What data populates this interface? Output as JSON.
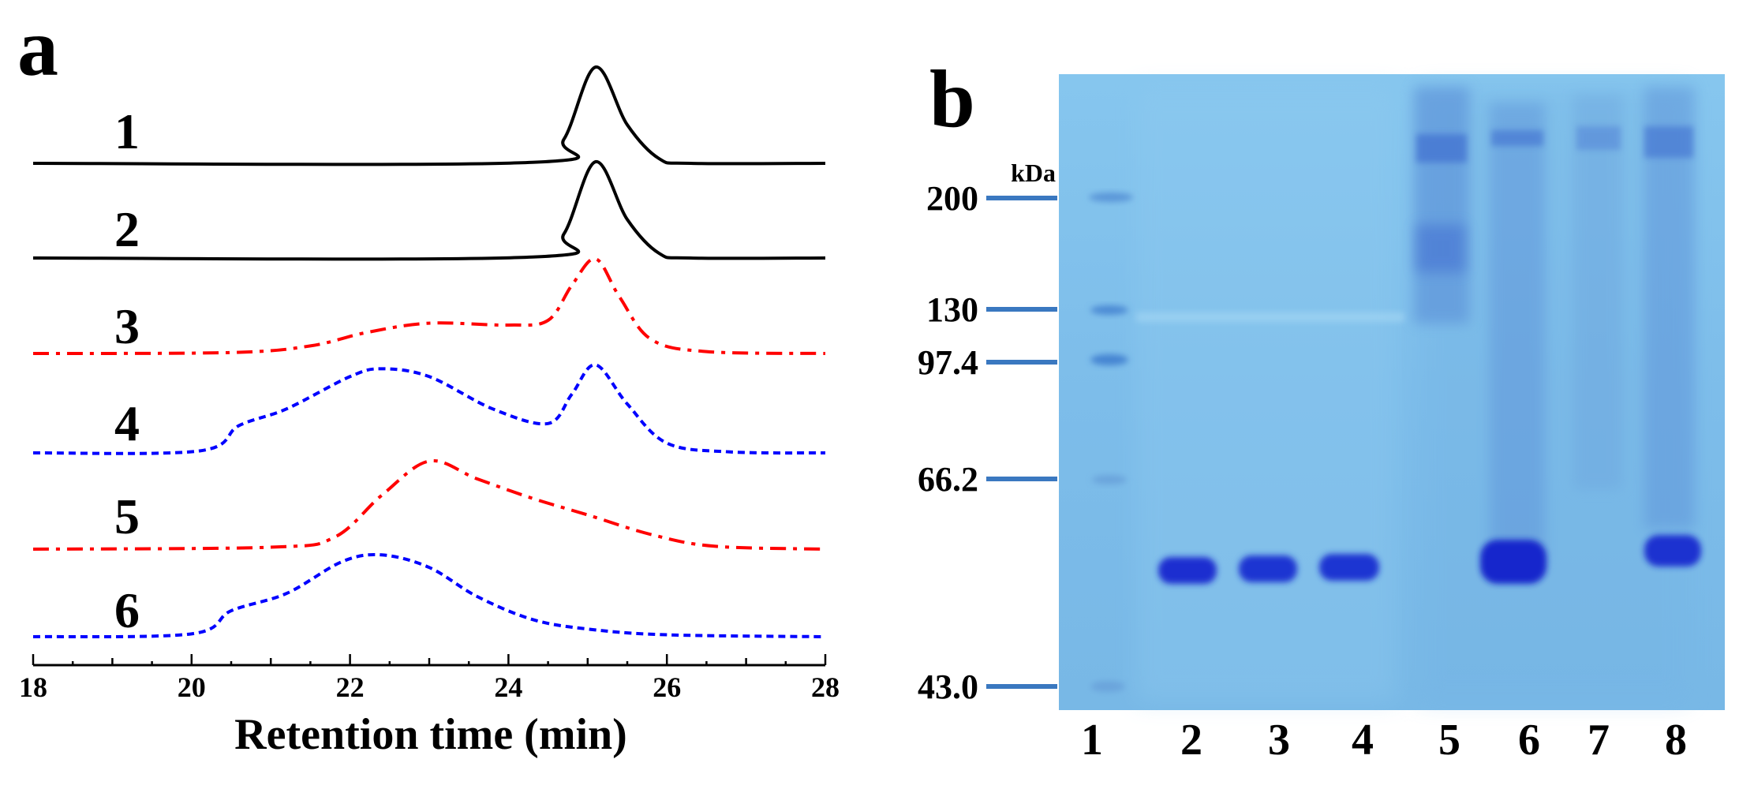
{
  "panel_a_letter": "a",
  "panel_b_letter": "b",
  "chart_data": [
    {
      "type": "line",
      "xlabel": "Retention time (min)",
      "ylabel": "",
      "xlim": [
        18,
        28
      ],
      "xticks": [
        18,
        20,
        22,
        24,
        26,
        28
      ],
      "grid": false,
      "traces": [
        {
          "label": "1",
          "color": "#000000",
          "style": "solid",
          "x": [
            18,
            24.3,
            24.7,
            25.1,
            25.5,
            25.9,
            26.3,
            28
          ],
          "y": [
            0,
            0.01,
            0.25,
            1.0,
            0.4,
            0.05,
            0,
            0
          ]
        },
        {
          "label": "2",
          "color": "#000000",
          "style": "solid",
          "x": [
            18,
            24.3,
            24.7,
            25.1,
            25.5,
            25.9,
            26.3,
            28
          ],
          "y": [
            0,
            0.01,
            0.25,
            1.0,
            0.4,
            0.05,
            0,
            0
          ]
        },
        {
          "label": "3",
          "color": "#ff0000",
          "style": "dashdot",
          "x": [
            18,
            20.5,
            21.5,
            22.2,
            23.0,
            24.0,
            24.5,
            24.8,
            25.1,
            25.4,
            25.8,
            26.5,
            28
          ],
          "y": [
            0,
            0.01,
            0.08,
            0.22,
            0.32,
            0.3,
            0.35,
            0.72,
            1.0,
            0.6,
            0.15,
            0.02,
            0
          ]
        },
        {
          "label": "4",
          "color": "#0000ff",
          "style": "dotted",
          "x": [
            18,
            20.1,
            20.6,
            21.2,
            22.0,
            22.4,
            23.0,
            23.8,
            24.5,
            24.8,
            25.1,
            25.5,
            26.0,
            26.8,
            28
          ],
          "y": [
            0,
            0.02,
            0.28,
            0.45,
            0.78,
            0.86,
            0.78,
            0.45,
            0.3,
            0.6,
            0.9,
            0.5,
            0.1,
            0.01,
            0
          ]
        },
        {
          "label": "5",
          "color": "#ff0000",
          "style": "dashdot",
          "x": [
            18,
            21.0,
            21.8,
            22.4,
            23.0,
            23.6,
            24.3,
            25.0,
            25.8,
            26.6,
            28
          ],
          "y": [
            0,
            0.02,
            0.12,
            0.55,
            0.9,
            0.72,
            0.52,
            0.35,
            0.15,
            0.03,
            0
          ]
        },
        {
          "label": "6",
          "color": "#0000ff",
          "style": "dotted",
          "x": [
            18,
            20.0,
            20.5,
            21.2,
            21.9,
            22.4,
            23.0,
            23.6,
            24.3,
            25.0,
            26.0,
            28
          ],
          "y": [
            0,
            0.03,
            0.27,
            0.45,
            0.78,
            0.85,
            0.72,
            0.42,
            0.18,
            0.08,
            0.02,
            0
          ]
        }
      ]
    },
    {
      "type": "gel",
      "unit_label": "kDa",
      "markers": [
        "200",
        "130",
        "97.4",
        "66.2",
        "43.0"
      ],
      "lanes": [
        "1",
        "2",
        "3",
        "4",
        "5",
        "6",
        "7",
        "8"
      ]
    }
  ],
  "colors": {
    "gel_background": "#7ec0ec",
    "band_dark": "#1a2fd0",
    "marker_tick": "#3a78c0"
  }
}
